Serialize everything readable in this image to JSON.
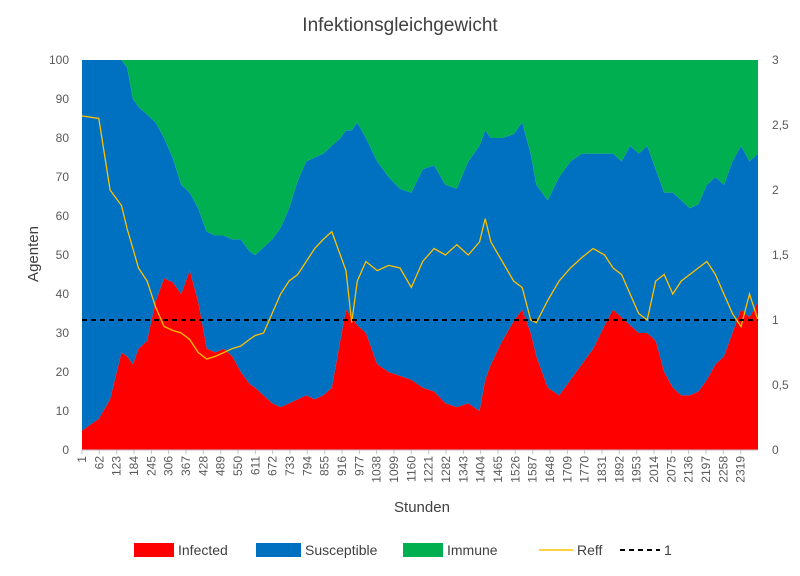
{
  "chart_data": {
    "type": "area",
    "stacked": true,
    "title": "Infektionsgleichgewicht",
    "xlabel": "Stunden",
    "ylabel": "Agenten",
    "ylim": [
      0,
      100
    ],
    "y_ticks": [
      "0",
      "10",
      "20",
      "30",
      "40",
      "50",
      "60",
      "70",
      "80",
      "90",
      "100"
    ],
    "y2lim": [
      0,
      3
    ],
    "y2_ticks": [
      "0",
      "0,5",
      "1",
      "1,5",
      "2",
      "2,5",
      "3"
    ],
    "x_range": [
      1,
      2380
    ],
    "x_ticks": [
      "1",
      "62",
      "123",
      "184",
      "245",
      "306",
      "367",
      "428",
      "489",
      "550",
      "611",
      "672",
      "733",
      "794",
      "855",
      "916",
      "977",
      "1038",
      "1099",
      "1160",
      "1221",
      "1282",
      "1343",
      "1404",
      "1465",
      "1526",
      "1587",
      "1648",
      "1709",
      "1770",
      "1831",
      "1892",
      "1953",
      "2014",
      "2075",
      "2136",
      "2197",
      "2258",
      "2319"
    ],
    "x": [
      1,
      60,
      100,
      140,
      160,
      180,
      200,
      230,
      260,
      290,
      320,
      350,
      380,
      410,
      440,
      470,
      500,
      530,
      560,
      590,
      610,
      640,
      670,
      700,
      730,
      760,
      790,
      820,
      850,
      880,
      910,
      930,
      950,
      970,
      1000,
      1040,
      1080,
      1120,
      1160,
      1200,
      1240,
      1280,
      1320,
      1360,
      1400,
      1420,
      1440,
      1480,
      1520,
      1550,
      1580,
      1600,
      1640,
      1680,
      1720,
      1760,
      1800,
      1840,
      1870,
      1900,
      1930,
      1960,
      1990,
      2020,
      2050,
      2080,
      2110,
      2140,
      2170,
      2200,
      2230,
      2260,
      2290,
      2320,
      2350,
      2380
    ],
    "series": [
      {
        "name": "Infected",
        "color": "#ff0000",
        "values": [
          5,
          8,
          13,
          25,
          24,
          22,
          26,
          28,
          38,
          44,
          43,
          40,
          46,
          38,
          26,
          25,
          26,
          24,
          20,
          17,
          16,
          14,
          12,
          11,
          12,
          13,
          14,
          13,
          14,
          16,
          28,
          36,
          34,
          32,
          30,
          22,
          20,
          19,
          18,
          16,
          15,
          12,
          11,
          12,
          10,
          18,
          22,
          28,
          33,
          36,
          30,
          24,
          16,
          14,
          18,
          22,
          26,
          32,
          36,
          34,
          32,
          30,
          30,
          28,
          20,
          16,
          14,
          14,
          15,
          18,
          22,
          24,
          30,
          36,
          34,
          38
        ]
      },
      {
        "name": "Susceptible",
        "color": "#0070c0",
        "values": [
          95,
          92,
          87,
          75,
          74,
          68,
          62,
          58,
          46,
          36,
          32,
          28,
          20,
          24,
          30,
          30,
          29,
          30,
          34,
          34,
          34,
          38,
          42,
          46,
          50,
          56,
          60,
          62,
          62,
          62,
          52,
          46,
          48,
          52,
          50,
          52,
          50,
          48,
          48,
          56,
          58,
          56,
          56,
          62,
          68,
          64,
          58,
          52,
          48,
          48,
          46,
          44,
          48,
          56,
          56,
          54,
          50,
          44,
          40,
          40,
          46,
          46,
          48,
          44,
          46,
          50,
          50,
          48,
          48,
          50,
          48,
          44,
          44,
          42,
          40,
          38
        ]
      },
      {
        "name": "Immune",
        "color": "#00b050",
        "values": [
          0,
          0,
          0,
          0,
          2,
          10,
          12,
          14,
          16,
          20,
          25,
          32,
          34,
          38,
          44,
          45,
          45,
          46,
          46,
          49,
          50,
          48,
          46,
          43,
          38,
          31,
          26,
          25,
          24,
          22,
          20,
          18,
          18,
          16,
          20,
          26,
          30,
          33,
          34,
          28,
          27,
          32,
          33,
          26,
          22,
          18,
          20,
          20,
          19,
          16,
          24,
          32,
          36,
          30,
          26,
          24,
          24,
          24,
          24,
          26,
          22,
          24,
          22,
          28,
          34,
          34,
          36,
          38,
          37,
          32,
          30,
          32,
          26,
          22,
          26,
          24
        ]
      },
      {
        "name": "Reff",
        "color": "#ffc000",
        "axis": "secondary",
        "values": [
          2.57,
          2.55,
          2.0,
          1.88,
          1.7,
          1.55,
          1.4,
          1.3,
          1.1,
          0.95,
          0.92,
          0.9,
          0.85,
          0.75,
          0.7,
          0.72,
          0.75,
          0.78,
          0.8,
          0.85,
          0.88,
          0.9,
          1.05,
          1.2,
          1.3,
          1.35,
          1.45,
          1.55,
          1.62,
          1.68,
          1.5,
          1.38,
          0.98,
          1.3,
          1.45,
          1.38,
          1.42,
          1.4,
          1.25,
          1.45,
          1.55,
          1.5,
          1.58,
          1.5,
          1.6,
          1.78,
          1.6,
          1.45,
          1.3,
          1.25,
          1.0,
          0.98,
          1.15,
          1.3,
          1.4,
          1.48,
          1.55,
          1.5,
          1.4,
          1.35,
          1.2,
          1.05,
          1.0,
          1.3,
          1.35,
          1.2,
          1.3,
          1.35,
          1.4,
          1.45,
          1.35,
          1.2,
          1.05,
          0.95,
          1.2,
          1.0
        ]
      },
      {
        "name": "1",
        "color": "#000000",
        "axis": "secondary",
        "style": "dashed",
        "constant": 1
      }
    ],
    "legend": [
      "Infected",
      "Susceptible",
      "Immune",
      "Reff",
      "1"
    ],
    "legend_position": "bottom",
    "grid": false
  }
}
